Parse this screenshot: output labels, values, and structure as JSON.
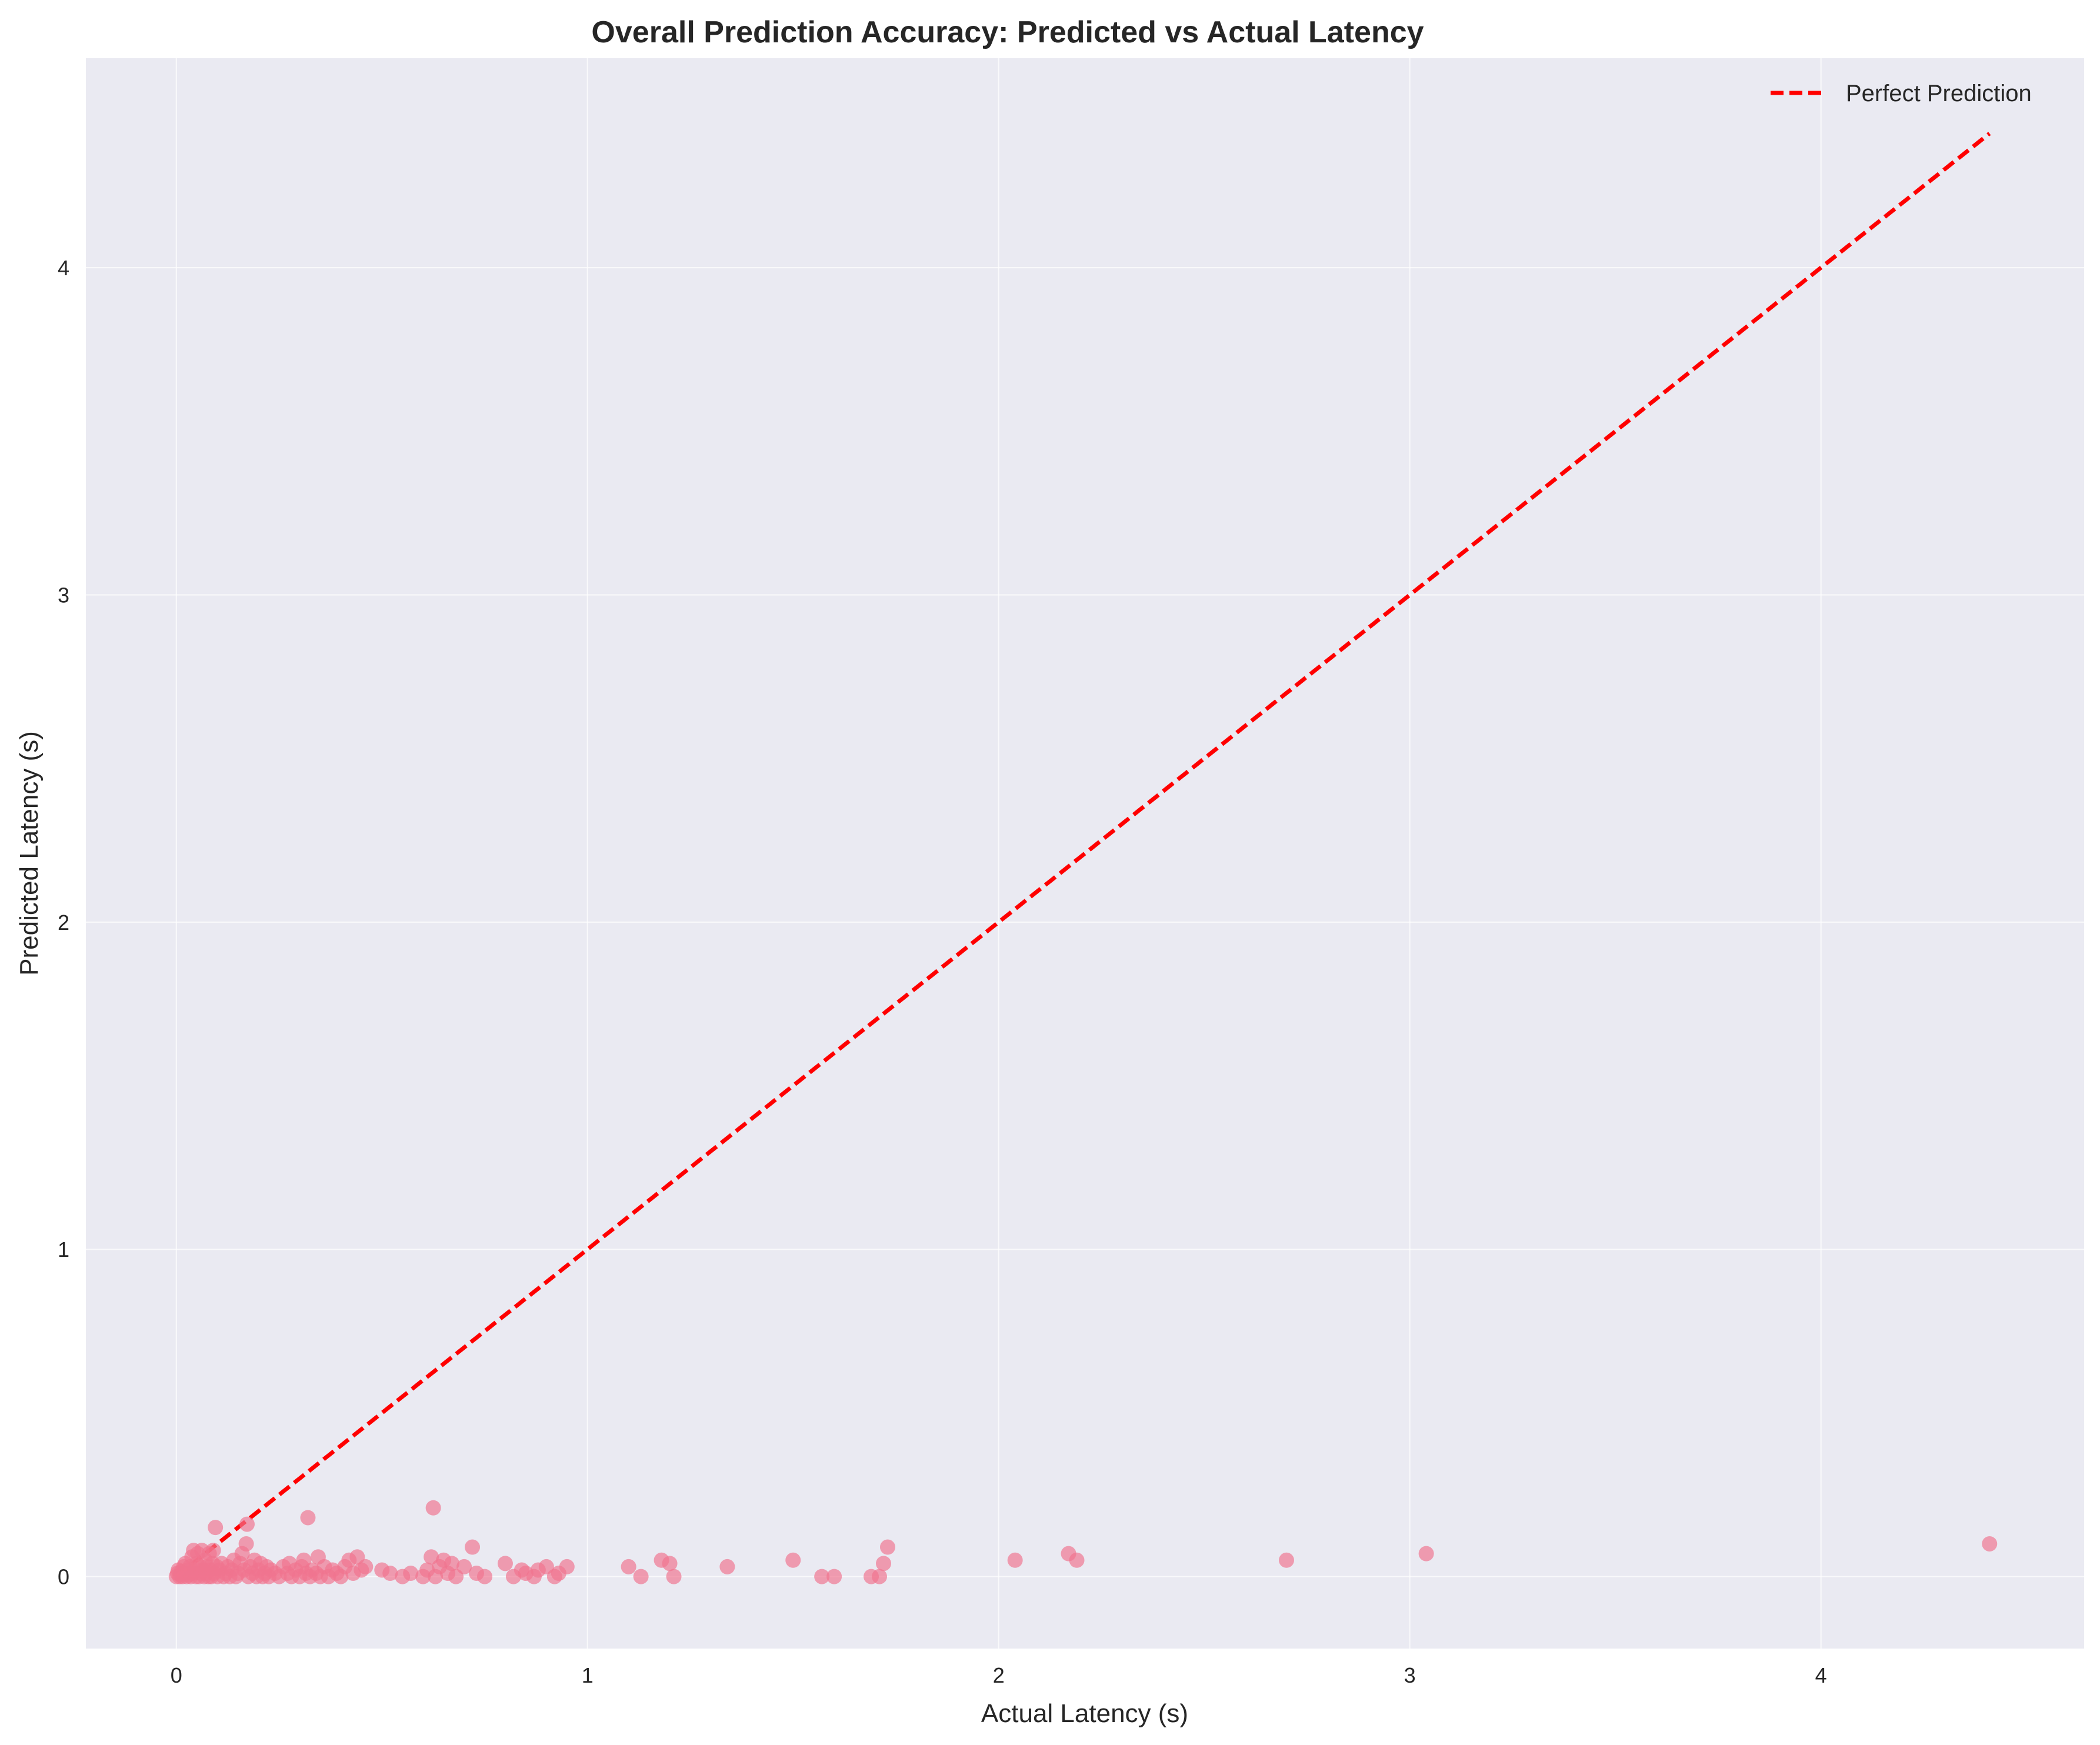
{
  "chart_data": {
    "type": "scatter",
    "title": "Overall Prediction Accuracy: Predicted vs Actual Latency",
    "xlabel": "Actual Latency (s)",
    "ylabel": "Predicted Latency (s)",
    "xlim": [
      -0.22,
      4.64
    ],
    "ylim": [
      -0.22,
      4.64
    ],
    "xticks": [
      0,
      1,
      2,
      3,
      4
    ],
    "yticks": [
      0,
      1,
      2,
      3,
      4
    ],
    "grid": true,
    "legend_position": "top-right",
    "colors": {
      "plot_background": "#eaeaf2",
      "grid": "#ffffff",
      "points": "#f0758f",
      "reference_line": "#ff0000"
    },
    "reference_line": {
      "name": "Perfect Prediction",
      "x": [
        0,
        4.41
      ],
      "y": [
        0,
        4.41
      ],
      "style": "dashed"
    },
    "series": [
      {
        "name": "",
        "points": [
          [
            0.0,
            0.0
          ],
          [
            0.003,
            0.01
          ],
          [
            0.005,
            0.02
          ],
          [
            0.008,
            0.0
          ],
          [
            0.01,
            0.005
          ],
          [
            0.012,
            0.015
          ],
          [
            0.015,
            0.0
          ],
          [
            0.018,
            0.03
          ],
          [
            0.02,
            0.01
          ],
          [
            0.022,
            0.04
          ],
          [
            0.025,
            0.0
          ],
          [
            0.028,
            0.02
          ],
          [
            0.03,
            0.005
          ],
          [
            0.033,
            0.03
          ],
          [
            0.035,
            0.0
          ],
          [
            0.038,
            0.06
          ],
          [
            0.04,
            0.01
          ],
          [
            0.042,
            0.08
          ],
          [
            0.045,
            0.02
          ],
          [
            0.048,
            0.0
          ],
          [
            0.05,
            0.04
          ],
          [
            0.052,
            0.07
          ],
          [
            0.055,
            0.0
          ],
          [
            0.058,
            0.03
          ],
          [
            0.06,
            0.01
          ],
          [
            0.062,
            0.08
          ],
          [
            0.065,
            0.02
          ],
          [
            0.068,
            0.0
          ],
          [
            0.07,
            0.05
          ],
          [
            0.072,
            0.01
          ],
          [
            0.075,
            0.03
          ],
          [
            0.078,
            0.0
          ],
          [
            0.08,
            0.07
          ],
          [
            0.082,
            0.02
          ],
          [
            0.085,
            0.0
          ],
          [
            0.088,
            0.04
          ],
          [
            0.09,
            0.08
          ],
          [
            0.092,
            0.01
          ],
          [
            0.095,
            0.15
          ],
          [
            0.098,
            0.03
          ],
          [
            0.1,
            0.0
          ],
          [
            0.105,
            0.02
          ],
          [
            0.11,
            0.04
          ],
          [
            0.115,
            0.0
          ],
          [
            0.12,
            0.01
          ],
          [
            0.125,
            0.03
          ],
          [
            0.13,
            0.0
          ],
          [
            0.135,
            0.02
          ],
          [
            0.14,
            0.05
          ],
          [
            0.145,
            0.0
          ],
          [
            0.15,
            0.01
          ],
          [
            0.155,
            0.04
          ],
          [
            0.16,
            0.07
          ],
          [
            0.165,
            0.02
          ],
          [
            0.17,
            0.1
          ],
          [
            0.172,
            0.16
          ],
          [
            0.175,
            0.0
          ],
          [
            0.18,
            0.03
          ],
          [
            0.185,
            0.01
          ],
          [
            0.19,
            0.05
          ],
          [
            0.195,
            0.0
          ],
          [
            0.2,
            0.02
          ],
          [
            0.205,
            0.04
          ],
          [
            0.21,
            0.0
          ],
          [
            0.215,
            0.01
          ],
          [
            0.22,
            0.03
          ],
          [
            0.225,
            0.0
          ],
          [
            0.23,
            0.02
          ],
          [
            0.24,
            0.01
          ],
          [
            0.25,
            0.0
          ],
          [
            0.26,
            0.03
          ],
          [
            0.27,
            0.01
          ],
          [
            0.275,
            0.04
          ],
          [
            0.28,
            0.0
          ],
          [
            0.29,
            0.02
          ],
          [
            0.3,
            0.0
          ],
          [
            0.305,
            0.03
          ],
          [
            0.31,
            0.05
          ],
          [
            0.315,
            0.01
          ],
          [
            0.32,
            0.18
          ],
          [
            0.325,
            0.0
          ],
          [
            0.33,
            0.02
          ],
          [
            0.34,
            0.01
          ],
          [
            0.345,
            0.06
          ],
          [
            0.35,
            0.0
          ],
          [
            0.36,
            0.03
          ],
          [
            0.37,
            0.0
          ],
          [
            0.38,
            0.02
          ],
          [
            0.39,
            0.01
          ],
          [
            0.4,
            0.0
          ],
          [
            0.41,
            0.03
          ],
          [
            0.42,
            0.05
          ],
          [
            0.43,
            0.01
          ],
          [
            0.44,
            0.06
          ],
          [
            0.45,
            0.02
          ],
          [
            0.46,
            0.03
          ],
          [
            0.5,
            0.02
          ],
          [
            0.52,
            0.01
          ],
          [
            0.55,
            0.0
          ],
          [
            0.57,
            0.01
          ],
          [
            0.6,
            0.0
          ],
          [
            0.61,
            0.02
          ],
          [
            0.62,
            0.06
          ],
          [
            0.625,
            0.21
          ],
          [
            0.63,
            0.0
          ],
          [
            0.64,
            0.03
          ],
          [
            0.65,
            0.05
          ],
          [
            0.66,
            0.01
          ],
          [
            0.67,
            0.04
          ],
          [
            0.68,
            0.0
          ],
          [
            0.7,
            0.03
          ],
          [
            0.72,
            0.09
          ],
          [
            0.73,
            0.01
          ],
          [
            0.75,
            0.0
          ],
          [
            0.8,
            0.04
          ],
          [
            0.82,
            0.0
          ],
          [
            0.84,
            0.02
          ],
          [
            0.85,
            0.01
          ],
          [
            0.87,
            0.0
          ],
          [
            0.88,
            0.02
          ],
          [
            0.9,
            0.03
          ],
          [
            0.92,
            0.0
          ],
          [
            0.93,
            0.01
          ],
          [
            0.95,
            0.03
          ],
          [
            1.1,
            0.03
          ],
          [
            1.13,
            0.0
          ],
          [
            1.18,
            0.05
          ],
          [
            1.2,
            0.04
          ],
          [
            1.21,
            0.0
          ],
          [
            1.34,
            0.03
          ],
          [
            1.5,
            0.05
          ],
          [
            1.57,
            0.0
          ],
          [
            1.6,
            0.0
          ],
          [
            1.69,
            0.0
          ],
          [
            1.71,
            0.0
          ],
          [
            1.72,
            0.04
          ],
          [
            1.73,
            0.09
          ],
          [
            2.04,
            0.05
          ],
          [
            2.17,
            0.07
          ],
          [
            2.19,
            0.05
          ],
          [
            2.7,
            0.05
          ],
          [
            3.04,
            0.07
          ],
          [
            4.41,
            0.1
          ]
        ]
      }
    ]
  }
}
